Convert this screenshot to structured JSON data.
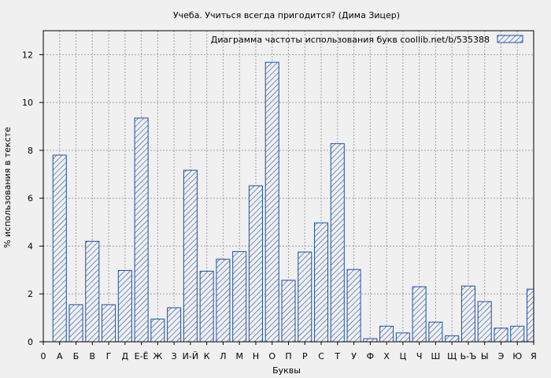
{
  "chart_data": {
    "type": "bar",
    "title": "Учеба. Учиться всегда пригодится? (Дима Зицер)",
    "xlabel": "Буквы",
    "ylabel": "% использования в тексте",
    "legend": "Диаграмма частоты использования букв  coollib.net/b/535388",
    "legend_position": "top-right",
    "grid": true,
    "ylim": [
      0,
      13
    ],
    "yticks": [
      0,
      2,
      4,
      6,
      8,
      10,
      12
    ],
    "xtick_labels": [
      "0",
      "А",
      "Б",
      "В",
      "Г",
      "Д",
      "Е-Ё",
      "Ж",
      "З",
      "И-Й",
      "К",
      "Л",
      "М",
      "Н",
      "О",
      "П",
      "Р",
      "С",
      "Т",
      "У",
      "Ф",
      "Х",
      "Ц",
      "Ч",
      "Ш",
      "Щ",
      "Ь-Ъ",
      "Ы",
      "Э",
      "Ю",
      "Я"
    ],
    "categories": [
      "А",
      "Б",
      "В",
      "Г",
      "Д",
      "Е-Ё",
      "Ж",
      "З",
      "И-Й",
      "К",
      "Л",
      "М",
      "Н",
      "О",
      "П",
      "Р",
      "С",
      "Т",
      "У",
      "Ф",
      "Х",
      "Ц",
      "Ч",
      "Ш",
      "Щ",
      "Ь-Ъ",
      "Ы",
      "Э",
      "Ю",
      "Я"
    ],
    "values": [
      7.8,
      1.55,
      4.2,
      1.55,
      2.98,
      9.35,
      0.95,
      1.42,
      7.17,
      2.95,
      3.45,
      3.77,
      6.52,
      11.68,
      2.57,
      3.75,
      4.97,
      8.28,
      3.02,
      0.13,
      0.65,
      0.37,
      2.3,
      0.82,
      0.25,
      2.33,
      1.68,
      0.57,
      0.65,
      2.2
    ],
    "colors": {
      "background": "#f0f0f0",
      "plot_background": "#f0f0f0",
      "bar_stroke": "#1e4fa8",
      "hatch": "#1e4fa8",
      "grid": "#a0a0a0",
      "axis": "#000000"
    }
  }
}
